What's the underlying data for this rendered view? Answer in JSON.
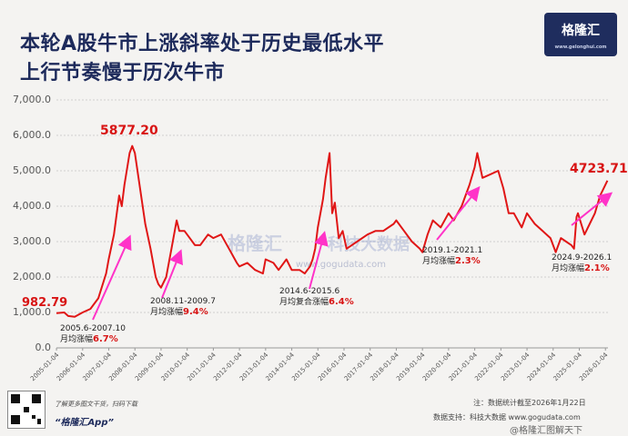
{
  "title": {
    "line1": "本轮A股牛市上涨斜率处于历史最低水平",
    "line2": "上行节奏慢于历次牛市"
  },
  "logo": {
    "name": "格隆汇",
    "url": "www.gelonghui.com",
    "icon": "g-logo-icon"
  },
  "watermark": {
    "brand": "格隆汇",
    "data": "科技大数据",
    "url": "www.gogudata.com"
  },
  "colors": {
    "line": "#e01616",
    "arrow": "#ff33c8",
    "accent": "#d81414",
    "navy": "#1d2a5b"
  },
  "chart_data": {
    "type": "line",
    "title": "本轮A股牛市上涨斜率处于历史最低水平 上行节奏慢于历次牛市",
    "xlabel": "",
    "ylabel": "",
    "ylim": [
      0,
      7000
    ],
    "yticks": [
      "0.0",
      "1,000.0",
      "2,000.0",
      "3,000.0",
      "4,000.0",
      "5,000.0",
      "6,000.0",
      "7,000.0"
    ],
    "xticks": [
      "2005-01-04",
      "2006-01-04",
      "2007-01-04",
      "2008-01-04",
      "2009-01-04",
      "2010-01-04",
      "2011-01-04",
      "2012-01-04",
      "2013-01-04",
      "2014-01-04",
      "2015-01-04",
      "2016-01-04",
      "2017-01-04",
      "2018-01-04",
      "2019-01-04",
      "2020-01-04",
      "2021-01-04",
      "2022-01-04",
      "2023-01-04",
      "2024-01-04",
      "2025-01-04",
      "2026-01-04"
    ],
    "series": [
      {
        "name": "index",
        "x": [
          2005.0,
          2005.3,
          2005.45,
          2005.7,
          2006.0,
          2006.3,
          2006.6,
          2006.9,
          2007.0,
          2007.2,
          2007.4,
          2007.5,
          2007.6,
          2007.8,
          2007.9,
          2008.0,
          2008.2,
          2008.4,
          2008.6,
          2008.8,
          2008.9,
          2009.0,
          2009.2,
          2009.4,
          2009.6,
          2009.7,
          2009.9,
          2010.0,
          2010.3,
          2010.5,
          2010.8,
          2011.0,
          2011.3,
          2011.6,
          2011.9,
          2012.0,
          2012.3,
          2012.6,
          2012.9,
          2013.0,
          2013.3,
          2013.5,
          2013.8,
          2014.0,
          2014.3,
          2014.5,
          2014.7,
          2014.8,
          2014.9,
          2015.0,
          2015.2,
          2015.3,
          2015.45,
          2015.55,
          2015.65,
          2015.8,
          2015.95,
          2016.1,
          2016.5,
          2016.9,
          2017.2,
          2017.5,
          2017.9,
          2018.0,
          2018.3,
          2018.6,
          2018.9,
          2019.0,
          2019.2,
          2019.4,
          2019.7,
          2020.0,
          2020.2,
          2020.5,
          2020.8,
          2021.0,
          2021.1,
          2021.3,
          2021.6,
          2021.9,
          2022.1,
          2022.3,
          2022.5,
          2022.8,
          2023.0,
          2023.3,
          2023.6,
          2023.9,
          2024.1,
          2024.3,
          2024.5,
          2024.7,
          2024.8,
          2024.9,
          2024.95,
          2025.2,
          2025.4,
          2025.6,
          2025.8,
          2026.0,
          2026.08
        ],
        "values": [
          983,
          1000,
          900,
          880,
          1000,
          1100,
          1400,
          2100,
          2500,
          3200,
          4300,
          4000,
          4600,
          5500,
          5700,
          5500,
          4500,
          3500,
          2800,
          2000,
          1800,
          1700,
          2000,
          2800,
          3600,
          3300,
          3300,
          3200,
          2900,
          2900,
          3200,
          3100,
          3200,
          2800,
          2400,
          2300,
          2400,
          2200,
          2100,
          2500,
          2400,
          2200,
          2500,
          2200,
          2200,
          2100,
          2300,
          2500,
          2800,
          3400,
          4200,
          4800,
          5500,
          3800,
          4100,
          3100,
          3300,
          2800,
          3000,
          3200,
          3300,
          3300,
          3500,
          3600,
          3300,
          3000,
          2800,
          2700,
          3200,
          3600,
          3400,
          3800,
          3600,
          4000,
          4600,
          5100,
          5500,
          4800,
          4900,
          5000,
          4500,
          3800,
          3800,
          3400,
          3800,
          3500,
          3300,
          3100,
          2700,
          3100,
          3000,
          2900,
          2800,
          3700,
          3800,
          3200,
          3500,
          3800,
          4300,
          4600,
          4723.71
        ]
      }
    ],
    "data_labels": {
      "start": "982.79",
      "peak_2007": "5877.20",
      "latest": "4723.71"
    },
    "annotations": [
      {
        "period": "2005.6-2007.10",
        "label": "月均涨幅",
        "rate": "6.7%"
      },
      {
        "period": "2008.11-2009.7",
        "label": "月均涨幅",
        "rate": "9.4%"
      },
      {
        "period": "2014.6-2015.6",
        "label": "月均复合涨幅",
        "rate": "6.4%"
      },
      {
        "period": "2019.1-2021.1",
        "label": "月均涨幅",
        "rate": "2.3%"
      },
      {
        "period": "2024.9-2026.1",
        "label": "月均涨幅",
        "rate": "2.1%"
      }
    ]
  },
  "footer": {
    "qr_hint": "了解更多图文干货，扫码下载",
    "app": "“格隆汇App”",
    "note": "注：数据统计截至2026年1月22日",
    "source": "数据支持：科技大数据 www.gogudata.com",
    "weibo": "@格隆汇图解天下"
  }
}
